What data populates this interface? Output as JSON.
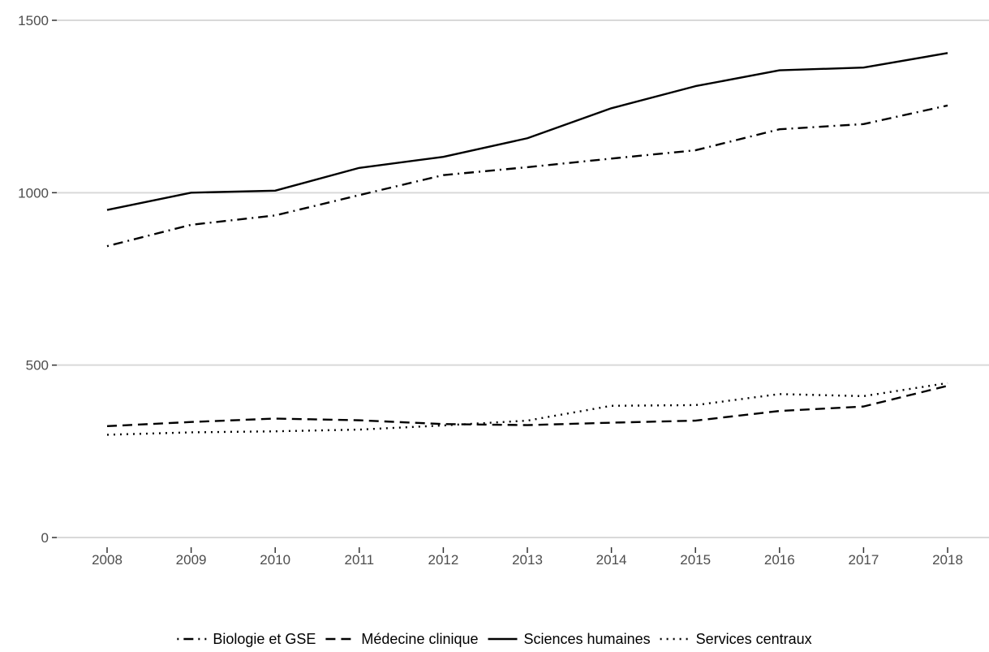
{
  "chart_data": {
    "type": "line",
    "title": "",
    "xlabel": "",
    "ylabel": "",
    "x": [
      2008,
      2009,
      2010,
      2011,
      2012,
      2013,
      2014,
      2015,
      2016,
      2017,
      2018
    ],
    "x_tick_labels": [
      "2008",
      "2009",
      "2010",
      "2011",
      "2012",
      "2013",
      "2014",
      "2015",
      "2016",
      "2017",
      "2018"
    ],
    "ylim": [
      0,
      1500
    ],
    "y_ticks": [
      0,
      500,
      1000,
      1500
    ],
    "y_tick_labels": [
      "0",
      "500",
      "1000",
      "1500"
    ],
    "grid": "horizontal major lines",
    "legend_position": "bottom",
    "series": [
      {
        "name": "Biologie et GSE",
        "linetype": "dotdash",
        "values": [
          845,
          907,
          934,
          993,
          1051,
          1074,
          1099,
          1123,
          1184,
          1199,
          1253
        ]
      },
      {
        "name": "Médecine clinique",
        "linetype": "dashed",
        "values": [
          323,
          335,
          345,
          340,
          329,
          326,
          333,
          339,
          367,
          380,
          440
        ]
      },
      {
        "name": "Sciences humaines",
        "linetype": "solid",
        "values": [
          950,
          1000,
          1006,
          1072,
          1104,
          1158,
          1245,
          1309,
          1355,
          1363,
          1405
        ]
      },
      {
        "name": "Services centraux",
        "linetype": "dotted",
        "values": [
          298,
          305,
          308,
          313,
          325,
          339,
          382,
          384,
          416,
          410,
          448
        ]
      }
    ],
    "colors": {
      "line": "#000000",
      "grid": "#d9d9d9",
      "tick_text": "#4d4d4d",
      "axis_tick": "#333333"
    }
  }
}
